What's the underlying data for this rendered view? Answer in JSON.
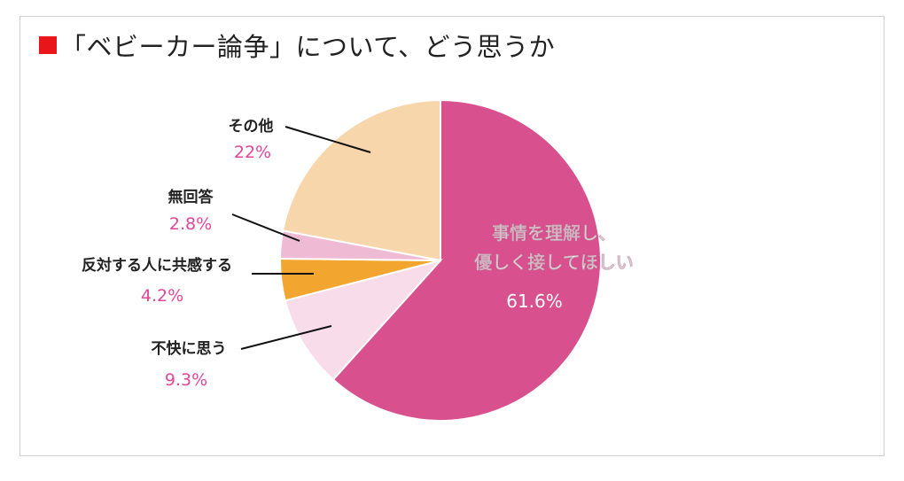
{
  "title": "「ベビーカー論争」について、どう思うか",
  "colors": {
    "title_marker": "#e8161b",
    "pct_text": "#e0479a",
    "inner_text": "#ffffff",
    "label_text": "#222222",
    "slice_border": "#ffffff"
  },
  "chart_data": {
    "type": "pie",
    "title": "「ベビーカー論争」について、どう思うか",
    "start_angle_deg": 0,
    "direction": "clockwise",
    "slices": [
      {
        "label_lines": [
          "事情を理解し、",
          "優しく接してほしい"
        ],
        "value": 61.6,
        "pct_label": "61.6%",
        "color": "#d9508f",
        "label_inside": true
      },
      {
        "label_lines": [
          "不快に思う"
        ],
        "value": 9.3,
        "pct_label": "9.3%",
        "color": "#f8dcea",
        "label_inside": false
      },
      {
        "label_lines": [
          "反対する人に共感する"
        ],
        "value": 4.2,
        "pct_label": "4.2%",
        "color": "#f2a62f",
        "label_inside": false
      },
      {
        "label_lines": [
          "無回答"
        ],
        "value": 2.8,
        "pct_label": "2.8%",
        "color": "#efbad3",
        "label_inside": false
      },
      {
        "label_lines": [
          "その他"
        ],
        "value": 22,
        "pct_label": "22%",
        "color": "#f8d6ab",
        "label_inside": false
      }
    ]
  }
}
